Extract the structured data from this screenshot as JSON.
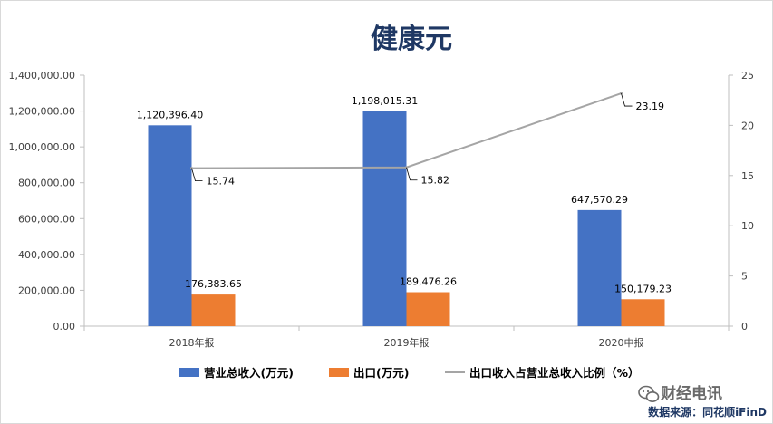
{
  "chart_data": {
    "type": "bar",
    "title": "健康元",
    "categories": [
      "2018年报",
      "2019年报",
      "2020中报"
    ],
    "series": [
      {
        "name": "营业总收入(万元)",
        "kind": "bar",
        "axis": "left",
        "color": "#4472c4",
        "values": [
          1120396.4,
          1198015.31,
          647570.29
        ],
        "labels": [
          "1,120,396.40",
          "1,198,015.31",
          "647,570.29"
        ]
      },
      {
        "name": "出口(万元)",
        "kind": "bar",
        "axis": "left",
        "color": "#ed7d31",
        "values": [
          176383.65,
          189476.26,
          150179.23
        ],
        "labels": [
          "176,383.65",
          "189,476.26",
          "150,179.23"
        ]
      },
      {
        "name": "出口收入占营业总收入比例（%）",
        "kind": "line",
        "axis": "right",
        "color": "#a5a5a5",
        "values": [
          15.74,
          15.82,
          23.19
        ],
        "labels": [
          "15.74",
          "15.82",
          "23.19"
        ]
      }
    ],
    "y_left": {
      "lim": [
        0,
        1400000
      ],
      "ticks": [
        0,
        200000,
        400000,
        600000,
        800000,
        1000000,
        1200000,
        1400000
      ],
      "tick_labels": [
        "0.00",
        "200,000.00",
        "400,000.00",
        "600,000.00",
        "800,000.00",
        "1,000,000.00",
        "1,200,000.00",
        "1,400,000.00"
      ]
    },
    "y_right": {
      "lim": [
        0,
        25
      ],
      "ticks": [
        0,
        5,
        10,
        15,
        20,
        25
      ],
      "tick_labels": [
        "0",
        "5",
        "10",
        "15",
        "20",
        "25"
      ]
    },
    "grid": false,
    "legend_position": "bottom"
  },
  "watermark": "财经电讯",
  "watermark_icon": "wechat-icon",
  "source": "数据来源：同花顺iFinD"
}
